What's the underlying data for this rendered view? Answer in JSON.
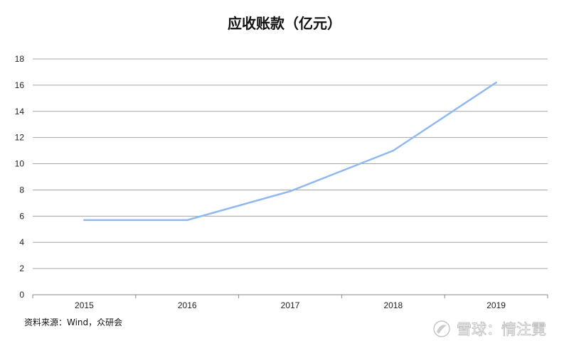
{
  "chart_data": {
    "type": "line",
    "title": "应收账款（亿元）",
    "categories": [
      "2015",
      "2016",
      "2017",
      "2018",
      "2019"
    ],
    "series": [
      {
        "values": [
          5.7,
          5.7,
          7.9,
          11.0,
          16.2
        ]
      }
    ],
    "ylim": [
      0,
      18
    ],
    "y_ticks": [
      0,
      2,
      4,
      6,
      8,
      10,
      12,
      14,
      16,
      18
    ],
    "grid": true,
    "line_color": "#8fb9f0"
  },
  "source_note": "资料来源：Wind，众研会",
  "watermark": {
    "text": "雪球：情注霓",
    "icon": "snowball-logo-icon"
  }
}
